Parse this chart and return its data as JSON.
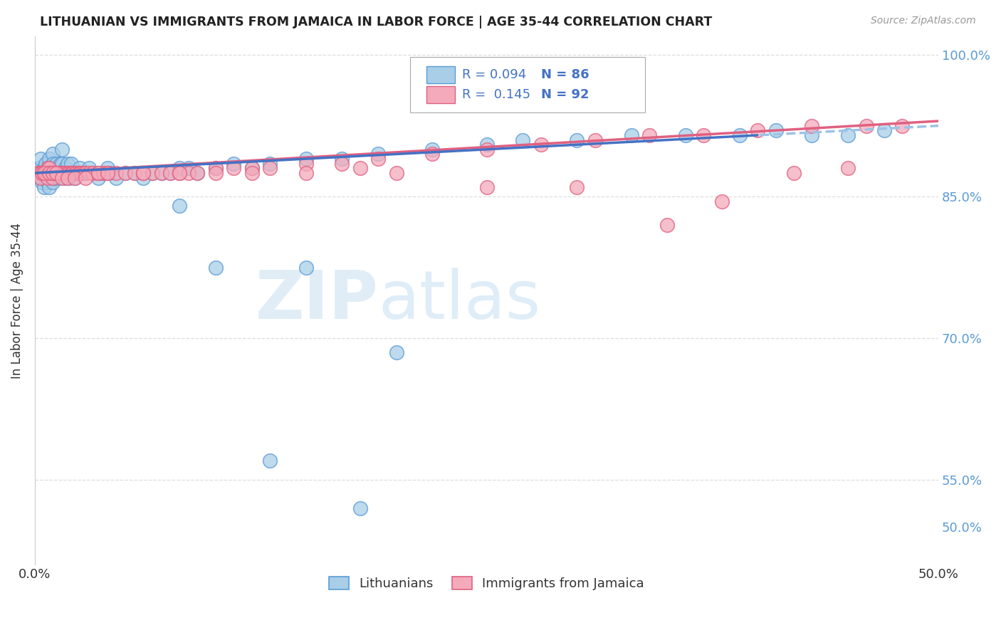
{
  "title": "LITHUANIAN VS IMMIGRANTS FROM JAMAICA IN LABOR FORCE | AGE 35-44 CORRELATION CHART",
  "source": "Source: ZipAtlas.com",
  "ylabel": "In Labor Force | Age 35-44",
  "xlim": [
    0.0,
    0.5
  ],
  "ylim": [
    0.46,
    1.02
  ],
  "xtick_positions": [
    0.0,
    0.1,
    0.2,
    0.3,
    0.4,
    0.5
  ],
  "xticklabels": [
    "0.0%",
    "",
    "",
    "",
    "",
    "50.0%"
  ],
  "ytick_positions": [
    0.5,
    0.55,
    0.6,
    0.65,
    0.7,
    0.75,
    0.8,
    0.85,
    0.9,
    0.95,
    1.0
  ],
  "yticklabels_right": [
    "50.0%",
    "55.0%",
    "",
    "",
    "70.0%",
    "",
    "",
    "85.0%",
    "",
    "",
    "100.0%"
  ],
  "R_blue": 0.094,
  "N_blue": 86,
  "R_pink": 0.145,
  "N_pink": 92,
  "blue_color": "#A8CEE8",
  "blue_edge": "#5B9BD5",
  "pink_color": "#F4AABB",
  "pink_edge": "#E06080",
  "trendline_blue_solid": "#4472C4",
  "trendline_blue_dash": "#9DC3E6",
  "trendline_pink": "#E06080",
  "legend_blue_label": "Lithuanians",
  "legend_pink_label": "Immigrants from Jamaica",
  "blue_x": [
    0.001,
    0.002,
    0.003,
    0.003,
    0.004,
    0.004,
    0.005,
    0.005,
    0.005,
    0.006,
    0.006,
    0.007,
    0.007,
    0.008,
    0.008,
    0.008,
    0.009,
    0.009,
    0.01,
    0.01,
    0.01,
    0.01,
    0.011,
    0.011,
    0.012,
    0.012,
    0.013,
    0.013,
    0.014,
    0.014,
    0.015,
    0.015,
    0.016,
    0.016,
    0.017,
    0.018,
    0.018,
    0.019,
    0.02,
    0.02,
    0.021,
    0.022,
    0.023,
    0.024,
    0.025,
    0.025,
    0.03,
    0.032,
    0.035,
    0.038,
    0.04,
    0.042,
    0.045,
    0.05,
    0.055,
    0.06,
    0.065,
    0.07,
    0.075,
    0.08,
    0.085,
    0.09,
    0.1,
    0.11,
    0.12,
    0.13,
    0.15,
    0.17,
    0.19,
    0.22,
    0.25,
    0.27,
    0.3,
    0.33,
    0.36,
    0.39,
    0.41,
    0.43,
    0.45,
    0.47,
    0.15,
    0.2,
    0.08,
    0.1,
    0.13,
    0.18
  ],
  "blue_y": [
    0.875,
    0.88,
    0.87,
    0.89,
    0.875,
    0.865,
    0.88,
    0.875,
    0.86,
    0.885,
    0.875,
    0.88,
    0.865,
    0.89,
    0.875,
    0.86,
    0.88,
    0.87,
    0.895,
    0.885,
    0.875,
    0.865,
    0.88,
    0.87,
    0.885,
    0.875,
    0.88,
    0.87,
    0.885,
    0.875,
    0.9,
    0.885,
    0.875,
    0.87,
    0.88,
    0.885,
    0.875,
    0.87,
    0.885,
    0.875,
    0.875,
    0.87,
    0.875,
    0.875,
    0.88,
    0.875,
    0.88,
    0.875,
    0.87,
    0.875,
    0.88,
    0.875,
    0.87,
    0.875,
    0.875,
    0.87,
    0.875,
    0.875,
    0.875,
    0.88,
    0.88,
    0.875,
    0.88,
    0.885,
    0.88,
    0.885,
    0.89,
    0.89,
    0.895,
    0.9,
    0.905,
    0.91,
    0.91,
    0.915,
    0.915,
    0.915,
    0.92,
    0.915,
    0.915,
    0.92,
    0.775,
    0.685,
    0.84,
    0.775,
    0.57,
    0.52
  ],
  "pink_x": [
    0.001,
    0.002,
    0.003,
    0.003,
    0.004,
    0.005,
    0.006,
    0.006,
    0.007,
    0.007,
    0.008,
    0.008,
    0.009,
    0.01,
    0.01,
    0.01,
    0.011,
    0.012,
    0.013,
    0.014,
    0.015,
    0.015,
    0.016,
    0.017,
    0.018,
    0.019,
    0.02,
    0.02,
    0.021,
    0.022,
    0.023,
    0.024,
    0.025,
    0.025,
    0.026,
    0.027,
    0.028,
    0.03,
    0.032,
    0.035,
    0.038,
    0.04,
    0.045,
    0.05,
    0.055,
    0.06,
    0.065,
    0.07,
    0.075,
    0.08,
    0.085,
    0.09,
    0.1,
    0.11,
    0.12,
    0.13,
    0.15,
    0.17,
    0.19,
    0.22,
    0.25,
    0.28,
    0.31,
    0.34,
    0.37,
    0.4,
    0.43,
    0.46,
    0.48,
    0.005,
    0.008,
    0.01,
    0.012,
    0.015,
    0.018,
    0.022,
    0.028,
    0.035,
    0.04,
    0.06,
    0.08,
    0.1,
    0.12,
    0.15,
    0.18,
    0.2,
    0.25,
    0.3,
    0.35,
    0.38,
    0.42,
    0.45
  ],
  "pink_y": [
    0.875,
    0.875,
    0.875,
    0.87,
    0.875,
    0.875,
    0.875,
    0.875,
    0.88,
    0.87,
    0.88,
    0.875,
    0.875,
    0.875,
    0.87,
    0.875,
    0.875,
    0.875,
    0.875,
    0.875,
    0.875,
    0.875,
    0.875,
    0.875,
    0.875,
    0.875,
    0.875,
    0.875,
    0.875,
    0.875,
    0.875,
    0.875,
    0.875,
    0.875,
    0.875,
    0.875,
    0.875,
    0.875,
    0.875,
    0.875,
    0.875,
    0.875,
    0.875,
    0.875,
    0.875,
    0.875,
    0.875,
    0.875,
    0.875,
    0.875,
    0.875,
    0.875,
    0.88,
    0.88,
    0.88,
    0.88,
    0.885,
    0.885,
    0.89,
    0.895,
    0.9,
    0.905,
    0.91,
    0.915,
    0.915,
    0.92,
    0.925,
    0.925,
    0.925,
    0.875,
    0.875,
    0.875,
    0.875,
    0.87,
    0.87,
    0.87,
    0.87,
    0.875,
    0.875,
    0.875,
    0.875,
    0.875,
    0.875,
    0.875,
    0.88,
    0.875,
    0.86,
    0.86,
    0.82,
    0.845,
    0.875,
    0.88
  ],
  "watermark_zip": "ZIP",
  "watermark_atlas": "atlas",
  "background_color": "#FFFFFF",
  "grid_color": "#DDDDDD"
}
